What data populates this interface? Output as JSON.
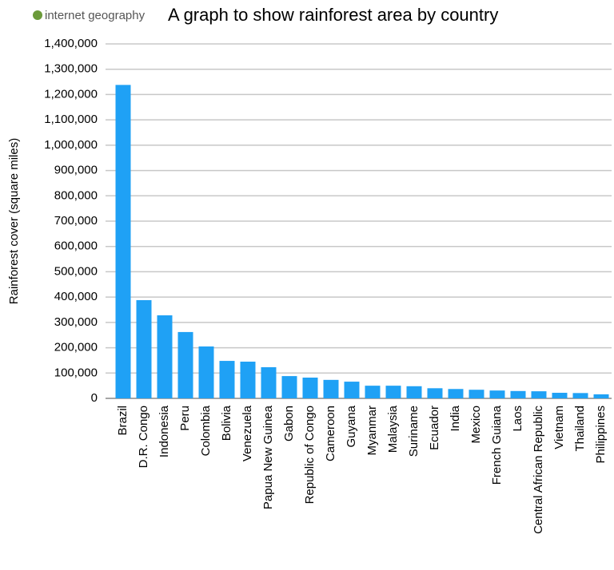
{
  "chart_data": {
    "type": "bar",
    "logo": "internet geography",
    "title": "A graph to show rainforest area by country",
    "y_label": "Rainforest cover (square miles)",
    "categories": [
      "Brazil",
      "D.R. Congo",
      "Indonesia",
      "Peru",
      "Colombia",
      "Bolivia",
      "Venezuela",
      "Papua New Guinea",
      "Gabon",
      "Republic of Congo",
      "Cameroon",
      "Guyana",
      "Myanmar",
      "Malaysia",
      "Suriname",
      "Ecuador",
      "India",
      "Mexico",
      "French Guiana",
      "Laos",
      "Central African Republic",
      "Vietnam",
      "Thailand",
      "Philippines"
    ],
    "values": [
      1238000,
      388000,
      328000,
      262000,
      205000,
      148000,
      145000,
      123000,
      88000,
      82000,
      73000,
      66000,
      50000,
      50000,
      48000,
      40000,
      37000,
      34000,
      31000,
      29000,
      28000,
      22000,
      21000,
      16000
    ],
    "color": "#1fa1f5",
    "ylim": [
      0,
      1400000
    ],
    "yticks": [
      0,
      {
        "value": 100000,
        "label": "100,000"
      },
      {
        "value": 200000,
        "label": "200,000"
      },
      {
        "value": 300000,
        "label": "300,000"
      },
      {
        "value": 400000,
        "label": "400,000"
      },
      {
        "value": 500000,
        "label": "500,000"
      },
      {
        "value": 600000,
        "label": "600,000"
      },
      {
        "value": 700000,
        "label": "700,000"
      },
      {
        "value": 800000,
        "label": "800,000"
      },
      {
        "value": 900000,
        "label": "900,000"
      },
      {
        "value": 1000000,
        "label": "1,000,000"
      },
      {
        "value": 1100000,
        "label": "1,100,000"
      },
      {
        "value": 1200000,
        "label": "1,200,000"
      },
      {
        "value": 1300000,
        "label": "1,300,000"
      },
      {
        "value": 1400000,
        "label": "1,400,000"
      }
    ],
    "grid": true
  }
}
